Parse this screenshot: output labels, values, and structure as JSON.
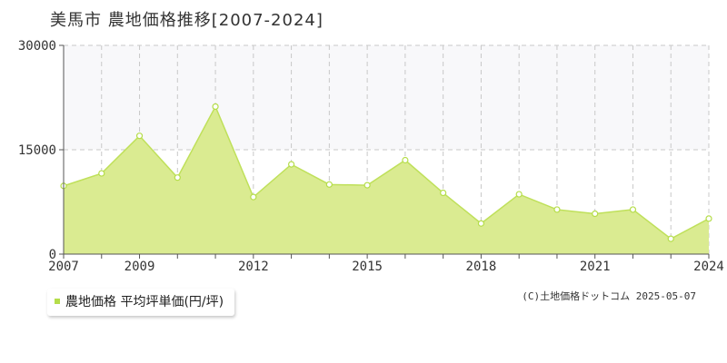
{
  "chart_data": {
    "type": "area",
    "title": "美馬市 農地価格推移[2007-2024]",
    "x": [
      2007,
      2008,
      2009,
      2010,
      2011,
      2012,
      2013,
      2014,
      2015,
      2016,
      2017,
      2018,
      2019,
      2020,
      2021,
      2022,
      2023,
      2024
    ],
    "series": [
      {
        "name": "農地価格 平均坪単価(円/坪)",
        "values": [
          9800,
          11600,
          17000,
          11000,
          21200,
          8200,
          12900,
          10000,
          9900,
          13500,
          8800,
          4400,
          8600,
          6400,
          5800,
          6400,
          2200,
          5100
        ]
      }
    ],
    "xlim": [
      2007,
      2024
    ],
    "ylim": [
      0,
      30000
    ],
    "y_ticks": [
      0,
      15000,
      30000
    ],
    "x_tick_labels": [
      2007,
      2009,
      2012,
      2015,
      2018,
      2021,
      2024
    ],
    "grid": true,
    "legend": "bottom-left",
    "colors": {
      "fill": "#daeb91",
      "line": "#bfe05a",
      "marker_fill": "#ffffff",
      "marker_stroke": "#b5dd4a",
      "upper_band": "#f8f8fa"
    }
  },
  "legend_label": "農地価格 平均坪単価(円/坪)",
  "copyright": "(C)土地価格ドットコム 2025-05-07"
}
